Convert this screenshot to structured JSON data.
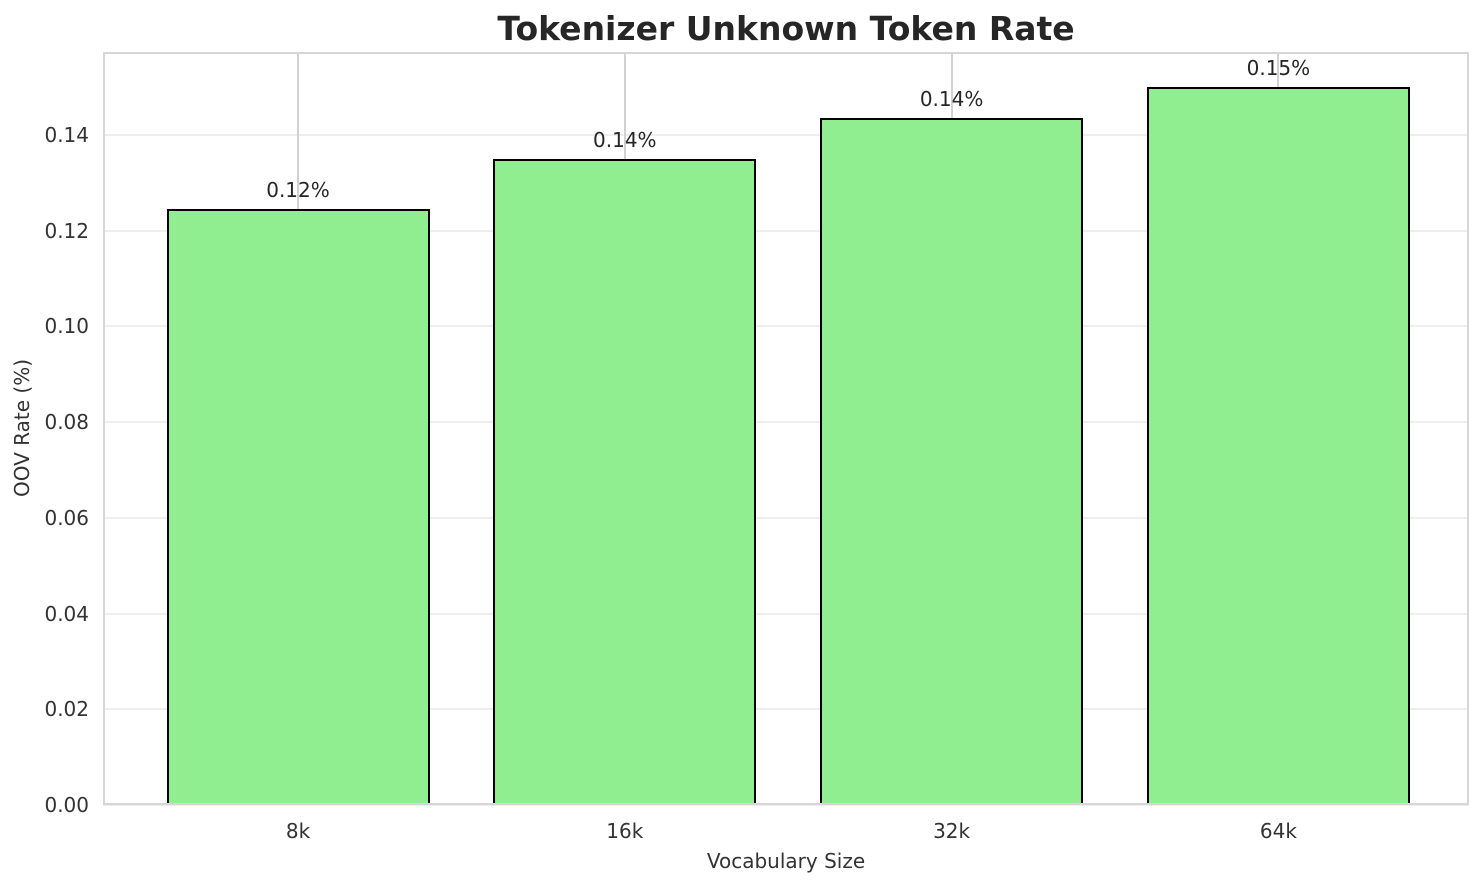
{
  "chart_data": {
    "type": "bar",
    "title": "Tokenizer Unknown Token Rate",
    "xlabel": "Vocabulary Size",
    "ylabel": "OOV Rate (%)",
    "categories": [
      "8k",
      "16k",
      "32k",
      "64k"
    ],
    "values": [
      0.1245,
      0.135,
      0.1435,
      0.15
    ],
    "bar_value_labels": [
      "0.12%",
      "0.14%",
      "0.14%",
      "0.15%"
    ],
    "ytick_values": [
      0,
      0.02,
      0.04,
      0.06,
      0.08,
      0.1,
      0.12,
      0.14
    ],
    "ytick_labels": [
      "0.00",
      "0.02",
      "0.04",
      "0.06",
      "0.08",
      "0.10",
      "0.12",
      "0.14"
    ],
    "ylim": [
      0,
      0.1573
    ],
    "grid": "both",
    "legend_position": "none",
    "colors": {
      "bar_fill": "#90EE90",
      "bar_edge": "#000000",
      "horizontal_grid": "#eeeeee",
      "vertical_grid": "#d2d2d2",
      "spine": "#d6d6d6",
      "text": "#262626"
    }
  }
}
